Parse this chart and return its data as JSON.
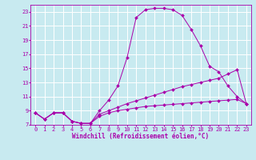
{
  "xlabel": "Windchill (Refroidissement éolien,°C)",
  "xlim": [
    -0.5,
    23.5
  ],
  "ylim": [
    7,
    24
  ],
  "yticks": [
    7,
    9,
    11,
    13,
    15,
    17,
    19,
    21,
    23
  ],
  "xticks": [
    0,
    1,
    2,
    3,
    4,
    5,
    6,
    7,
    8,
    9,
    10,
    11,
    12,
    13,
    14,
    15,
    16,
    17,
    18,
    19,
    20,
    21,
    22,
    23
  ],
  "bg_color": "#c8eaf0",
  "line_color": "#aa00aa",
  "grid_color": "#ffffff",
  "series1": [
    [
      0,
      8.7
    ],
    [
      1,
      7.8
    ],
    [
      2,
      8.7
    ],
    [
      3,
      8.7
    ],
    [
      4,
      7.5
    ],
    [
      5,
      7.2
    ],
    [
      6,
      7.2
    ],
    [
      7,
      9.0
    ],
    [
      8,
      10.5
    ],
    [
      9,
      12.5
    ],
    [
      10,
      16.5
    ],
    [
      11,
      22.2
    ],
    [
      12,
      23.3
    ],
    [
      13,
      23.5
    ],
    [
      14,
      23.5
    ],
    [
      15,
      23.3
    ],
    [
      16,
      22.5
    ],
    [
      17,
      20.5
    ],
    [
      18,
      18.2
    ],
    [
      19,
      15.3
    ],
    [
      20,
      14.5
    ],
    [
      21,
      12.5
    ],
    [
      22,
      11.0
    ],
    [
      23,
      10.0
    ]
  ],
  "series2": [
    [
      0,
      8.7
    ],
    [
      1,
      7.8
    ],
    [
      2,
      8.7
    ],
    [
      3,
      8.7
    ],
    [
      4,
      7.5
    ],
    [
      5,
      7.2
    ],
    [
      6,
      7.2
    ],
    [
      7,
      8.5
    ],
    [
      8,
      9.0
    ],
    [
      9,
      9.5
    ],
    [
      10,
      10.0
    ],
    [
      11,
      10.4
    ],
    [
      12,
      10.8
    ],
    [
      13,
      11.2
    ],
    [
      14,
      11.6
    ],
    [
      15,
      12.0
    ],
    [
      16,
      12.4
    ],
    [
      17,
      12.7
    ],
    [
      18,
      13.0
    ],
    [
      19,
      13.3
    ],
    [
      20,
      13.6
    ],
    [
      21,
      14.2
    ],
    [
      22,
      14.8
    ],
    [
      23,
      10.0
    ]
  ],
  "series3": [
    [
      0,
      8.7
    ],
    [
      1,
      7.8
    ],
    [
      2,
      8.7
    ],
    [
      3,
      8.7
    ],
    [
      4,
      7.5
    ],
    [
      5,
      7.2
    ],
    [
      6,
      7.2
    ],
    [
      7,
      8.2
    ],
    [
      8,
      8.7
    ],
    [
      9,
      9.0
    ],
    [
      10,
      9.2
    ],
    [
      11,
      9.4
    ],
    [
      12,
      9.6
    ],
    [
      13,
      9.7
    ],
    [
      14,
      9.8
    ],
    [
      15,
      9.9
    ],
    [
      16,
      10.0
    ],
    [
      17,
      10.1
    ],
    [
      18,
      10.2
    ],
    [
      19,
      10.3
    ],
    [
      20,
      10.4
    ],
    [
      21,
      10.5
    ],
    [
      22,
      10.6
    ],
    [
      23,
      10.0
    ]
  ]
}
